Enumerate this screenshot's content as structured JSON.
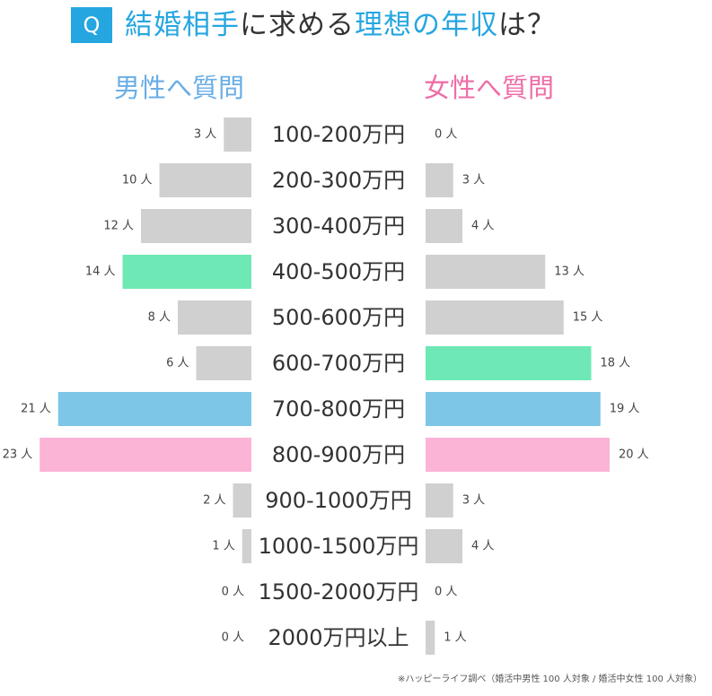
{
  "header": {
    "badge": "Q",
    "title_parts": [
      {
        "text": "結婚相手",
        "accent": true
      },
      {
        "text": "に求める",
        "accent": false
      },
      {
        "text": "理想の年収",
        "accent": true
      },
      {
        "text": "は？",
        "accent": false
      }
    ]
  },
  "groups": {
    "men": "男性へ質問",
    "women": "女性へ質問"
  },
  "source": "※ハッピーライフ調べ（婚活中男性 100 人対象 / 婚活中女性 100 人対象）",
  "colors": {
    "accent": "#26a6e0",
    "default_bar": "#d0d0d0",
    "highlight_green": "#6ee8b4",
    "highlight_blue": "#7dc6e8",
    "highlight_pink": "#fcb4d6"
  },
  "chart_data": {
    "type": "bar",
    "orientation": "horizontal-butterfly",
    "unit": "人",
    "categories": [
      "100-200万円",
      "200-300万円",
      "300-400万円",
      "400-500万円",
      "500-600万円",
      "600-700万円",
      "700-800万円",
      "800-900万円",
      "900-1000万円",
      "1000-1500万円",
      "1500-2000万円",
      "2000万円以上"
    ],
    "series": [
      {
        "name": "男性へ質問",
        "side": "left",
        "values": [
          3,
          10,
          12,
          14,
          8,
          6,
          21,
          23,
          2,
          1,
          0,
          0
        ],
        "bar_colors": [
          "#d0d0d0",
          "#d0d0d0",
          "#d0d0d0",
          "#6ee8b4",
          "#d0d0d0",
          "#d0d0d0",
          "#7dc6e8",
          "#fcb4d6",
          "#d0d0d0",
          "#d0d0d0",
          "#d0d0d0",
          "#d0d0d0"
        ]
      },
      {
        "name": "女性へ質問",
        "side": "right",
        "values": [
          0,
          3,
          4,
          13,
          15,
          18,
          19,
          20,
          3,
          4,
          0,
          1
        ],
        "bar_colors": [
          "#d0d0d0",
          "#d0d0d0",
          "#d0d0d0",
          "#d0d0d0",
          "#d0d0d0",
          "#6ee8b4",
          "#7dc6e8",
          "#fcb4d6",
          "#d0d0d0",
          "#d0d0d0",
          "#d0d0d0",
          "#d0d0d0"
        ]
      }
    ],
    "grid": false
  }
}
